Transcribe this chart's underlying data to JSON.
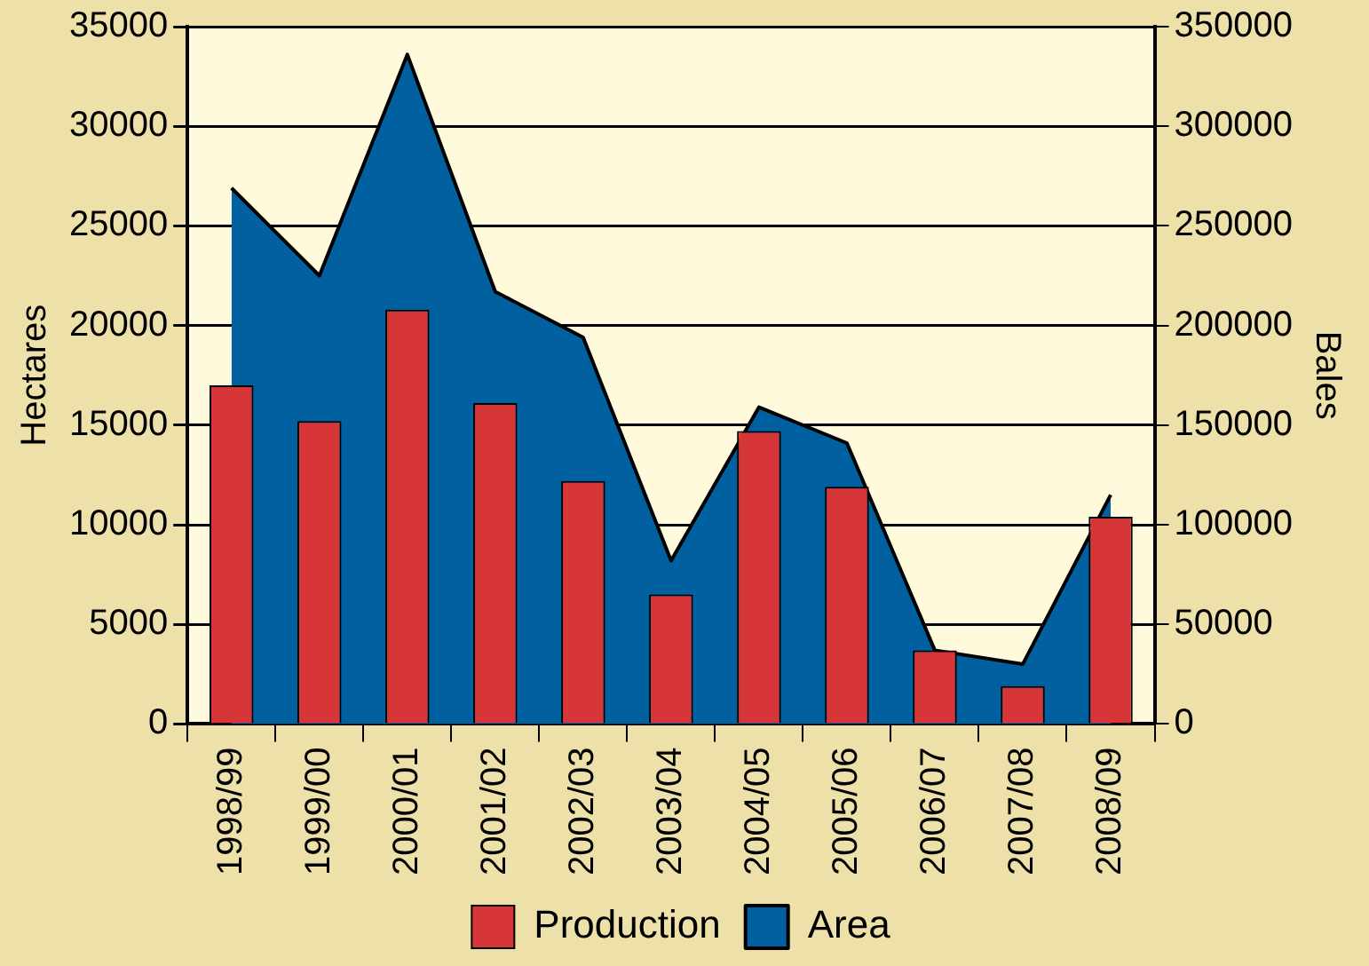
{
  "chart_data": {
    "type": "bar",
    "categories": [
      "1998/99",
      "1999/00",
      "2000/01",
      "2001/02",
      "2002/03",
      "2003/04",
      "2004/05",
      "2005/06",
      "2006/07",
      "2007/08",
      "2008/09"
    ],
    "series": [
      {
        "name": "Production",
        "axis": "y2",
        "color": "#d63638",
        "values": [
          170000,
          152000,
          208000,
          161000,
          122000,
          65000,
          147000,
          119000,
          37000,
          19000,
          104000
        ]
      },
      {
        "name": "Area",
        "type": "area",
        "color": "#0060a0",
        "values": [
          26900,
          22500,
          33600,
          21700,
          19400,
          8200,
          15900,
          14100,
          3700,
          3000,
          11500
        ]
      }
    ],
    "ylabel": "Hectares",
    "y2label": "Bales",
    "ylim": [
      0,
      35000
    ],
    "yticks": [
      0,
      5000,
      10000,
      15000,
      20000,
      25000,
      30000,
      35000
    ],
    "y2lim": [
      0,
      350000
    ],
    "y2ticks": [
      0,
      50000,
      100000,
      150000,
      200000,
      250000,
      300000,
      350000
    ],
    "grid": "y",
    "legend": "bottom"
  }
}
